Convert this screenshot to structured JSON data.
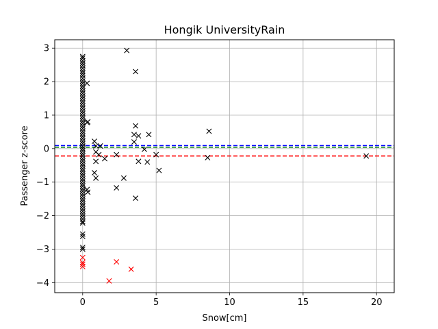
{
  "chart_data": {
    "type": "scatter",
    "title": "Hongik UniversityRain",
    "xlabel": "Snow[cm]",
    "ylabel": "Passenger z-score",
    "xlim": [
      -1.9,
      21.2
    ],
    "ylim": [
      -4.3,
      3.25
    ],
    "xticks": [
      0,
      5,
      10,
      15,
      20
    ],
    "yticks": [
      -4,
      -3,
      -2,
      -1,
      0,
      1,
      2,
      3
    ],
    "grid": true,
    "marker": "x",
    "hlines": [
      {
        "y": 0.09,
        "color": "#0000ff",
        "style": "dashed"
      },
      {
        "y": 0.04,
        "color": "#008000",
        "style": "dashed"
      },
      {
        "y": -0.22,
        "color": "#ff0000",
        "style": "dashed"
      }
    ],
    "series": [
      {
        "color": "#000000",
        "points": [
          [
            0,
            2.75
          ],
          [
            0,
            2.7
          ],
          [
            0,
            2.62
          ],
          [
            0,
            2.55
          ],
          [
            0,
            2.48
          ],
          [
            0,
            2.4
          ],
          [
            0,
            2.32
          ],
          [
            0,
            2.25
          ],
          [
            0,
            2.18
          ],
          [
            0,
            2.1
          ],
          [
            0,
            2.02
          ],
          [
            0,
            1.95
          ],
          [
            0,
            1.87
          ],
          [
            0,
            1.8
          ],
          [
            0,
            1.72
          ],
          [
            0,
            1.65
          ],
          [
            0,
            1.57
          ],
          [
            0,
            1.5
          ],
          [
            0,
            1.42
          ],
          [
            0,
            1.35
          ],
          [
            0,
            1.27
          ],
          [
            0,
            1.2
          ],
          [
            0,
            1.12
          ],
          [
            0,
            1.05
          ],
          [
            0,
            0.97
          ],
          [
            0,
            0.9
          ],
          [
            0,
            0.82
          ],
          [
            0,
            0.75
          ],
          [
            0,
            0.67
          ],
          [
            0,
            0.6
          ],
          [
            0,
            0.52
          ],
          [
            0,
            0.45
          ],
          [
            0,
            0.37
          ],
          [
            0,
            0.3
          ],
          [
            0,
            0.22
          ],
          [
            0,
            0.15
          ],
          [
            0,
            0.07
          ],
          [
            0,
            0.0
          ],
          [
            0,
            -0.07
          ],
          [
            0,
            -0.15
          ],
          [
            0,
            -0.22
          ],
          [
            0,
            -0.3
          ],
          [
            0,
            -0.37
          ],
          [
            0,
            -0.45
          ],
          [
            0,
            -0.52
          ],
          [
            0,
            -0.6
          ],
          [
            0,
            -0.67
          ],
          [
            0,
            -0.75
          ],
          [
            0,
            -0.82
          ],
          [
            0,
            -0.9
          ],
          [
            0,
            -0.97
          ],
          [
            0,
            -1.05
          ],
          [
            0,
            -1.12
          ],
          [
            0,
            -1.2
          ],
          [
            0,
            -1.27
          ],
          [
            0,
            -1.35
          ],
          [
            0,
            -1.42
          ],
          [
            0,
            -1.5
          ],
          [
            0,
            -1.57
          ],
          [
            0,
            -1.65
          ],
          [
            0,
            -1.72
          ],
          [
            0,
            -1.8
          ],
          [
            0,
            -1.87
          ],
          [
            0,
            -1.95
          ],
          [
            0,
            -2.02
          ],
          [
            0,
            -2.1
          ],
          [
            0,
            -2.18
          ],
          [
            0,
            -2.22
          ],
          [
            0,
            -2.55
          ],
          [
            0,
            -2.62
          ],
          [
            0,
            -2.95
          ],
          [
            0,
            -3.0
          ],
          [
            0.3,
            1.95
          ],
          [
            0.35,
            0.8
          ],
          [
            0.3,
            0.78
          ],
          [
            0.3,
            -1.22
          ],
          [
            0.35,
            -1.3
          ],
          [
            0.8,
            0.22
          ],
          [
            0.9,
            0.08
          ],
          [
            0.9,
            -0.1
          ],
          [
            1.2,
            0.08
          ],
          [
            1.1,
            -0.18
          ],
          [
            0.9,
            -0.38
          ],
          [
            1.5,
            -0.3
          ],
          [
            0.8,
            -0.72
          ],
          [
            0.9,
            -0.88
          ],
          [
            2.3,
            -0.18
          ],
          [
            2.3,
            -1.17
          ],
          [
            2.8,
            -0.88
          ],
          [
            3.0,
            2.93
          ],
          [
            3.6,
            2.3
          ],
          [
            3.6,
            0.68
          ],
          [
            3.5,
            0.42
          ],
          [
            3.8,
            0.38
          ],
          [
            3.5,
            0.2
          ],
          [
            3.8,
            -0.38
          ],
          [
            4.2,
            -0.02
          ],
          [
            4.5,
            0.42
          ],
          [
            4.4,
            -0.4
          ],
          [
            3.6,
            -1.48
          ],
          [
            5.0,
            -0.18
          ],
          [
            5.2,
            -0.65
          ],
          [
            8.6,
            0.52
          ],
          [
            8.5,
            -0.27
          ],
          [
            19.3,
            -0.22
          ]
        ]
      },
      {
        "color": "#ff0000",
        "points": [
          [
            0,
            -3.25
          ],
          [
            0,
            -3.4
          ],
          [
            0,
            -3.45
          ],
          [
            0,
            -3.52
          ],
          [
            2.3,
            -3.38
          ],
          [
            3.3,
            -3.6
          ],
          [
            1.8,
            -3.95
          ]
        ]
      }
    ]
  }
}
